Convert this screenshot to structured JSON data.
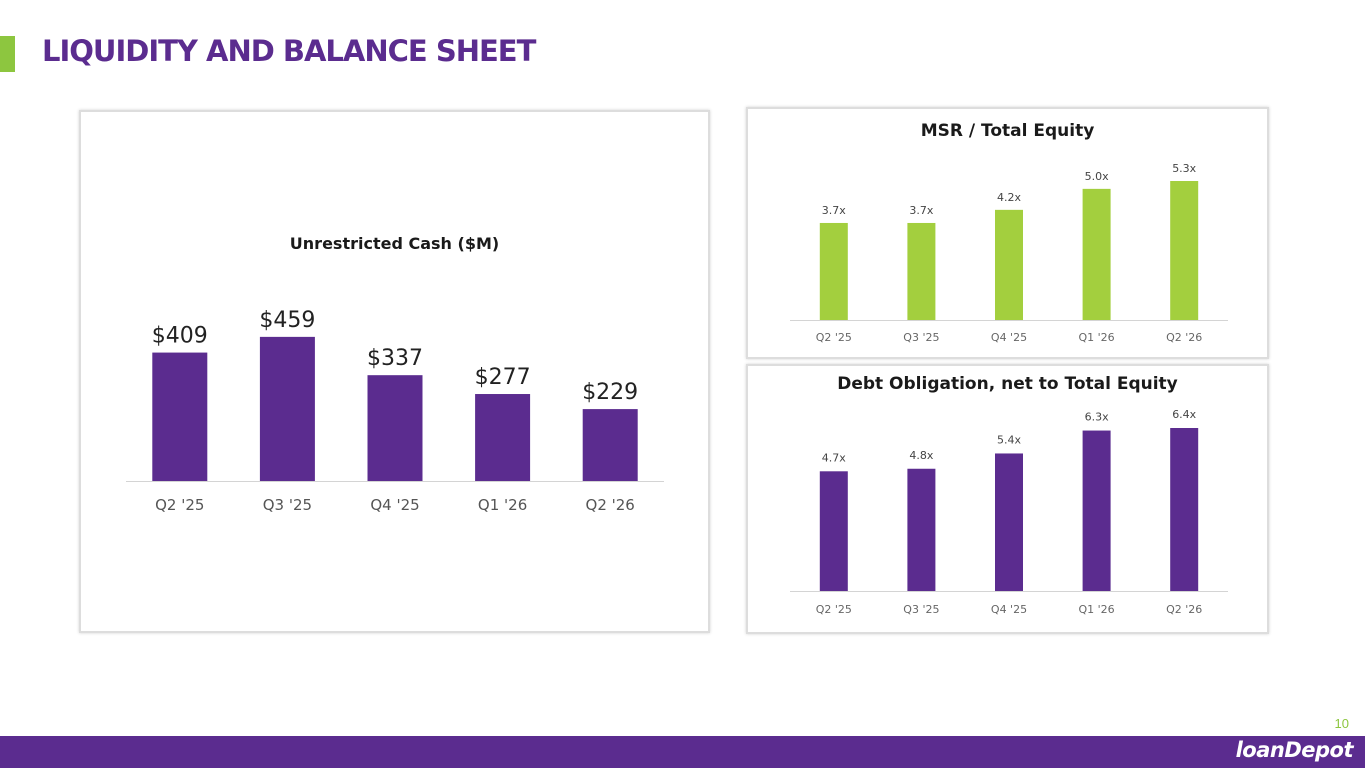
{
  "page": {
    "title": "LIQUIDITY AND BALANCE SHEET",
    "page_number": "10",
    "logo_text": "loanDepot",
    "colors": {
      "brand_purple": "#5b2c8f",
      "brand_green": "#8dc63f",
      "bar_green": "#a3cf3e"
    }
  },
  "chart_data": [
    {
      "id": "cash",
      "type": "bar",
      "title": "Unrestricted Cash ($M)",
      "categories": [
        "Q2 '25",
        "Q3 '25",
        "Q4 '25",
        "Q1 '26",
        "Q2 '26"
      ],
      "values": [
        409,
        459,
        337,
        277,
        229
      ],
      "labels": [
        "$409",
        "$459",
        "$337",
        "$277",
        "$229"
      ],
      "ylim": [
        0,
        500
      ],
      "color": "#5b2c8f",
      "grid": false,
      "legend": false
    },
    {
      "id": "msr",
      "type": "bar",
      "title": "MSR / Total Equity",
      "categories": [
        "Q2 '25",
        "Q3 '25",
        "Q4 '25",
        "Q1 '26",
        "Q2 '26"
      ],
      "values": [
        3.7,
        3.7,
        4.2,
        5.0,
        5.3
      ],
      "labels": [
        "3.7x",
        "3.7x",
        "4.2x",
        "5.0x",
        "5.3x"
      ],
      "ylim": [
        0,
        5.3
      ],
      "color": "#a3cf3e",
      "grid": false,
      "legend": false
    },
    {
      "id": "debt",
      "type": "bar",
      "title": "Debt Obligation, net to Total Equity",
      "categories": [
        "Q2 '25",
        "Q3 '25",
        "Q4 '25",
        "Q1 '26",
        "Q2 '26"
      ],
      "values": [
        4.7,
        4.8,
        5.4,
        6.3,
        6.4
      ],
      "labels": [
        "4.7x",
        "4.8x",
        "5.4x",
        "6.3x",
        "6.4x"
      ],
      "ylim": [
        0,
        6.4
      ],
      "color": "#5b2c8f",
      "grid": false,
      "legend": false
    }
  ]
}
